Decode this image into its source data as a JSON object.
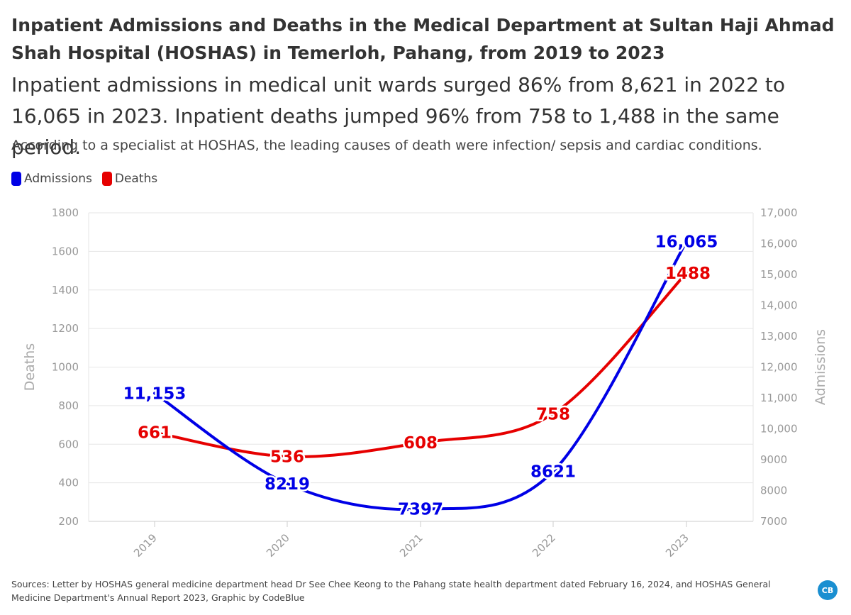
{
  "header": {
    "title": "Inpatient Admissions and Deaths in the Medical Department at Sultan Haji Ahmad Shah Hospital (HOSHAS) in Temerloh, Pahang, from 2019 to 2023",
    "subtitle": "Inpatient admissions in medical unit wards surged 86% from 8,621 in 2022 to 16,065 in 2023. Inpatient deaths jumped 96% from 758 to 1,488 in the same period.",
    "note": "According to a specialist at HOSHAS, the leading causes of death were infection/ sepsis and cardiac conditions."
  },
  "legend": [
    {
      "label": "Admissions",
      "color": "#0000e6"
    },
    {
      "label": "Deaths",
      "color": "#e60000"
    }
  ],
  "footer": {
    "source": "Sources: Letter by HOSHAS general medicine department head Dr See Chee Keong to the Pahang state health department dated February 16, 2024, and HOSHAS General Medicine Department's Annual Report 2023, Graphic by CodeBlue",
    "logo_text": "CB"
  },
  "chart_data": {
    "type": "line",
    "categories": [
      "2019",
      "2020",
      "2021",
      "2022",
      "2023"
    ],
    "left_axis": {
      "label": "Deaths",
      "range": [
        200,
        1800
      ],
      "ticks": [
        "200",
        "400",
        "600",
        "800",
        "1000",
        "1200",
        "1400",
        "1600",
        "1800"
      ]
    },
    "right_axis": {
      "label": "Admissions",
      "range": [
        7000,
        17000
      ],
      "ticks": [
        "7000",
        "8000",
        "9000",
        "10,000",
        "11,000",
        "12,000",
        "13,000",
        "14,000",
        "15,000",
        "16,000",
        "17,000"
      ]
    },
    "series": [
      {
        "name": "Admissions",
        "axis": "right",
        "color": "#0000e6",
        "values": [
          11153,
          8219,
          7397,
          8621,
          16065
        ],
        "labels": [
          "11,153",
          "8219",
          "7397",
          "8621",
          "16,065"
        ]
      },
      {
        "name": "Deaths",
        "axis": "left",
        "color": "#e60000",
        "values": [
          661,
          536,
          608,
          758,
          1488
        ],
        "labels": [
          "661",
          "536",
          "608",
          "758",
          "1488"
        ]
      }
    ],
    "grid": true,
    "legend_position": "top-left"
  }
}
